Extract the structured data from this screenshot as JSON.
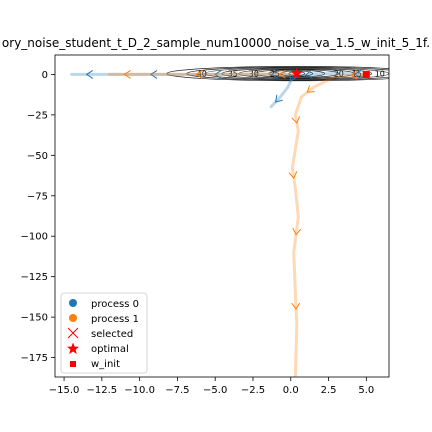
{
  "chart_data": {
    "type": "line",
    "title": "ory_noise_student_t_D_2_sample_num10000_noise_va_1.5_w_init_5_1f.",
    "xlabel": "",
    "ylabel": "",
    "xlim": [
      -15.6,
      6.5
    ],
    "ylim": [
      -187,
      12
    ],
    "xticks": [
      -15.0,
      -12.5,
      -10.0,
      -7.5,
      -5.0,
      -2.5,
      0.0,
      2.5,
      5.0
    ],
    "xtick_labels": [
      "−15.0",
      "−12.5",
      "−10.0",
      "−7.5",
      "−5.0",
      "−2.5",
      "0.0",
      "2.5",
      "5.0"
    ],
    "yticks": [
      0,
      -25,
      -50,
      -75,
      -100,
      -125,
      -150,
      -175
    ],
    "ytick_labels": [
      "0",
      "−25",
      "−50",
      "−75",
      "−100",
      "−125",
      "−150",
      "−175"
    ],
    "grid": false,
    "legend_position": "lower-left",
    "legend": [
      {
        "label": "process 0",
        "marker": "circle",
        "color": "#1f77b4"
      },
      {
        "label": "process 1",
        "marker": "circle",
        "color": "#ff7f0e"
      },
      {
        "label": "selected",
        "marker": "x",
        "color": "#ff0000"
      },
      {
        "label": "optimal",
        "marker": "star",
        "color": "#ff0000"
      },
      {
        "label": "w_init",
        "marker": "square",
        "color": "#ff0000"
      }
    ],
    "contour_levels": [
      "40",
      "35",
      "30",
      "25",
      "20",
      "15",
      "10"
    ],
    "series": [
      {
        "name": "process 0",
        "color": "#1f77b4",
        "points": [
          [
            5,
            0
          ],
          [
            3.5,
            0.5
          ],
          [
            1.5,
            0.3
          ],
          [
            0.5,
            -1
          ],
          [
            -0.5,
            0
          ],
          [
            -2,
            0
          ],
          [
            -4,
            0
          ],
          [
            -6,
            0
          ],
          [
            -8,
            0
          ],
          [
            -10.5,
            0
          ],
          [
            -12.5,
            0
          ],
          [
            -14.5,
            0
          ]
        ]
      },
      {
        "name": "process 0 (branch)",
        "color": "#1f77b4",
        "points": [
          [
            0.2,
            0
          ],
          [
            -0.2,
            -8
          ],
          [
            -0.7,
            -14
          ],
          [
            -1.3,
            -20
          ]
        ]
      },
      {
        "name": "process 1",
        "color": "#ff7f0e",
        "points": [
          [
            5,
            0
          ],
          [
            3,
            -1
          ],
          [
            1.5,
            -8
          ],
          [
            0.7,
            -14
          ],
          [
            0.3,
            -25
          ],
          [
            0.5,
            -35
          ],
          [
            0.1,
            -58
          ],
          [
            0.3,
            -70
          ],
          [
            0.5,
            -88
          ],
          [
            0.2,
            -110
          ],
          [
            0.3,
            -135
          ],
          [
            0.4,
            -155
          ],
          [
            0.3,
            -187
          ]
        ]
      },
      {
        "name": "process 1 (branch)",
        "color": "#ff7f0e",
        "points": [
          [
            0.5,
            0
          ],
          [
            -2,
            0.3
          ],
          [
            -5,
            0
          ],
          [
            -7.5,
            0
          ],
          [
            -10,
            0
          ],
          [
            -12,
            0
          ]
        ]
      }
    ],
    "selected": [],
    "optimal": [
      [
        0.4,
        0.5
      ]
    ],
    "w_init": [
      [
        5,
        0
      ]
    ]
  }
}
